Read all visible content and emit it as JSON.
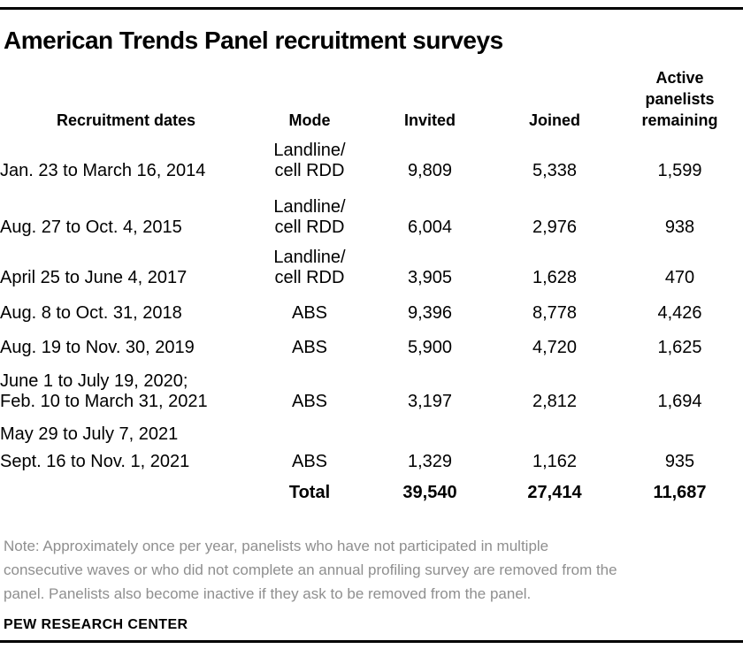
{
  "header": {
    "title": "American Trends Panel recruitment surveys"
  },
  "table": {
    "columns": [
      "Recruitment dates",
      "Mode",
      "Invited",
      "Joined",
      "Active panelists remaining"
    ],
    "rows": [
      {
        "dates": [
          "Jan. 23 to March 16, 2014"
        ],
        "mode": [
          "Landline/",
          "cell RDD"
        ],
        "invited": "9,809",
        "joined": "5,338",
        "remaining": "1,599"
      },
      {
        "dates": [
          "Aug. 27 to Oct. 4, 2015"
        ],
        "mode": [
          "Landline/",
          "cell RDD"
        ],
        "invited": "6,004",
        "joined": "2,976",
        "remaining": "938"
      },
      {
        "dates": [
          "April 25 to June 4, 2017"
        ],
        "mode": [
          "Landline/",
          "cell RDD"
        ],
        "invited": "3,905",
        "joined": "1,628",
        "remaining": "470"
      },
      {
        "dates": [
          "Aug. 8 to Oct. 31, 2018"
        ],
        "mode": [
          "ABS"
        ],
        "invited": "9,396",
        "joined": "8,778",
        "remaining": "4,426"
      },
      {
        "dates": [
          "Aug. 19 to Nov. 30, 2019"
        ],
        "mode": [
          "ABS"
        ],
        "invited": "5,900",
        "joined": "4,720",
        "remaining": "1,625"
      },
      {
        "dates": [
          "June 1 to July 19, 2020;",
          "Feb. 10 to March 31, 2021"
        ],
        "mode": [
          "ABS"
        ],
        "invited": "3,197",
        "joined": "2,812",
        "remaining": "1,694"
      },
      {
        "dates": [
          "May 29 to July 7, 2021",
          "Sept. 16 to Nov. 1, 2021"
        ],
        "dates_gap": true,
        "mode": [
          "ABS"
        ],
        "invited": "1,329",
        "joined": "1,162",
        "remaining": "935"
      },
      {
        "is_total": true,
        "dates": [],
        "mode": [
          "Total"
        ],
        "invited": "39,540",
        "joined": "27,414",
        "remaining": "11,687"
      }
    ]
  },
  "note_lines": [
    "Note: Approximately once per year, panelists who have not participated in multiple",
    "consecutive waves or who did not complete an annual profiling survey are removed from the",
    "panel. Panelists also become inactive if they ask to be removed from the panel."
  ],
  "source": "PEW RESEARCH CENTER",
  "colors": {
    "text": "#000000",
    "note": "#8f8f8f",
    "rule": "#000000",
    "background": "#ffffff"
  },
  "chart_data": {
    "type": "table",
    "title": "American Trends Panel recruitment surveys",
    "columns": [
      "Recruitment dates",
      "Mode",
      "Invited",
      "Joined",
      "Active panelists remaining"
    ],
    "rows": [
      [
        "Jan. 23 to March 16, 2014",
        "Landline/cell RDD",
        9809,
        5338,
        1599
      ],
      [
        "Aug. 27 to Oct. 4, 2015",
        "Landline/cell RDD",
        6004,
        2976,
        938
      ],
      [
        "April 25 to June 4, 2017",
        "Landline/cell RDD",
        3905,
        1628,
        470
      ],
      [
        "Aug. 8 to Oct. 31, 2018",
        "ABS",
        9396,
        8778,
        4426
      ],
      [
        "Aug. 19 to Nov. 30, 2019",
        "ABS",
        5900,
        4720,
        1625
      ],
      [
        "June 1 to July 19, 2020; Feb. 10 to March 31, 2021",
        "ABS",
        3197,
        2812,
        1694
      ],
      [
        "May 29 to July 7, 2021; Sept. 16 to Nov. 1, 2021",
        "ABS",
        1329,
        1162,
        935
      ]
    ],
    "total_row": [
      "Total",
      "",
      39540,
      27414,
      11687
    ],
    "footnote": "Note: Approximately once per year, panelists who have not participated in multiple consecutive waves or who did not complete an annual profiling survey are removed from the panel. Panelists also become inactive if they ask to be removed from the panel.",
    "source": "PEW RESEARCH CENTER"
  }
}
